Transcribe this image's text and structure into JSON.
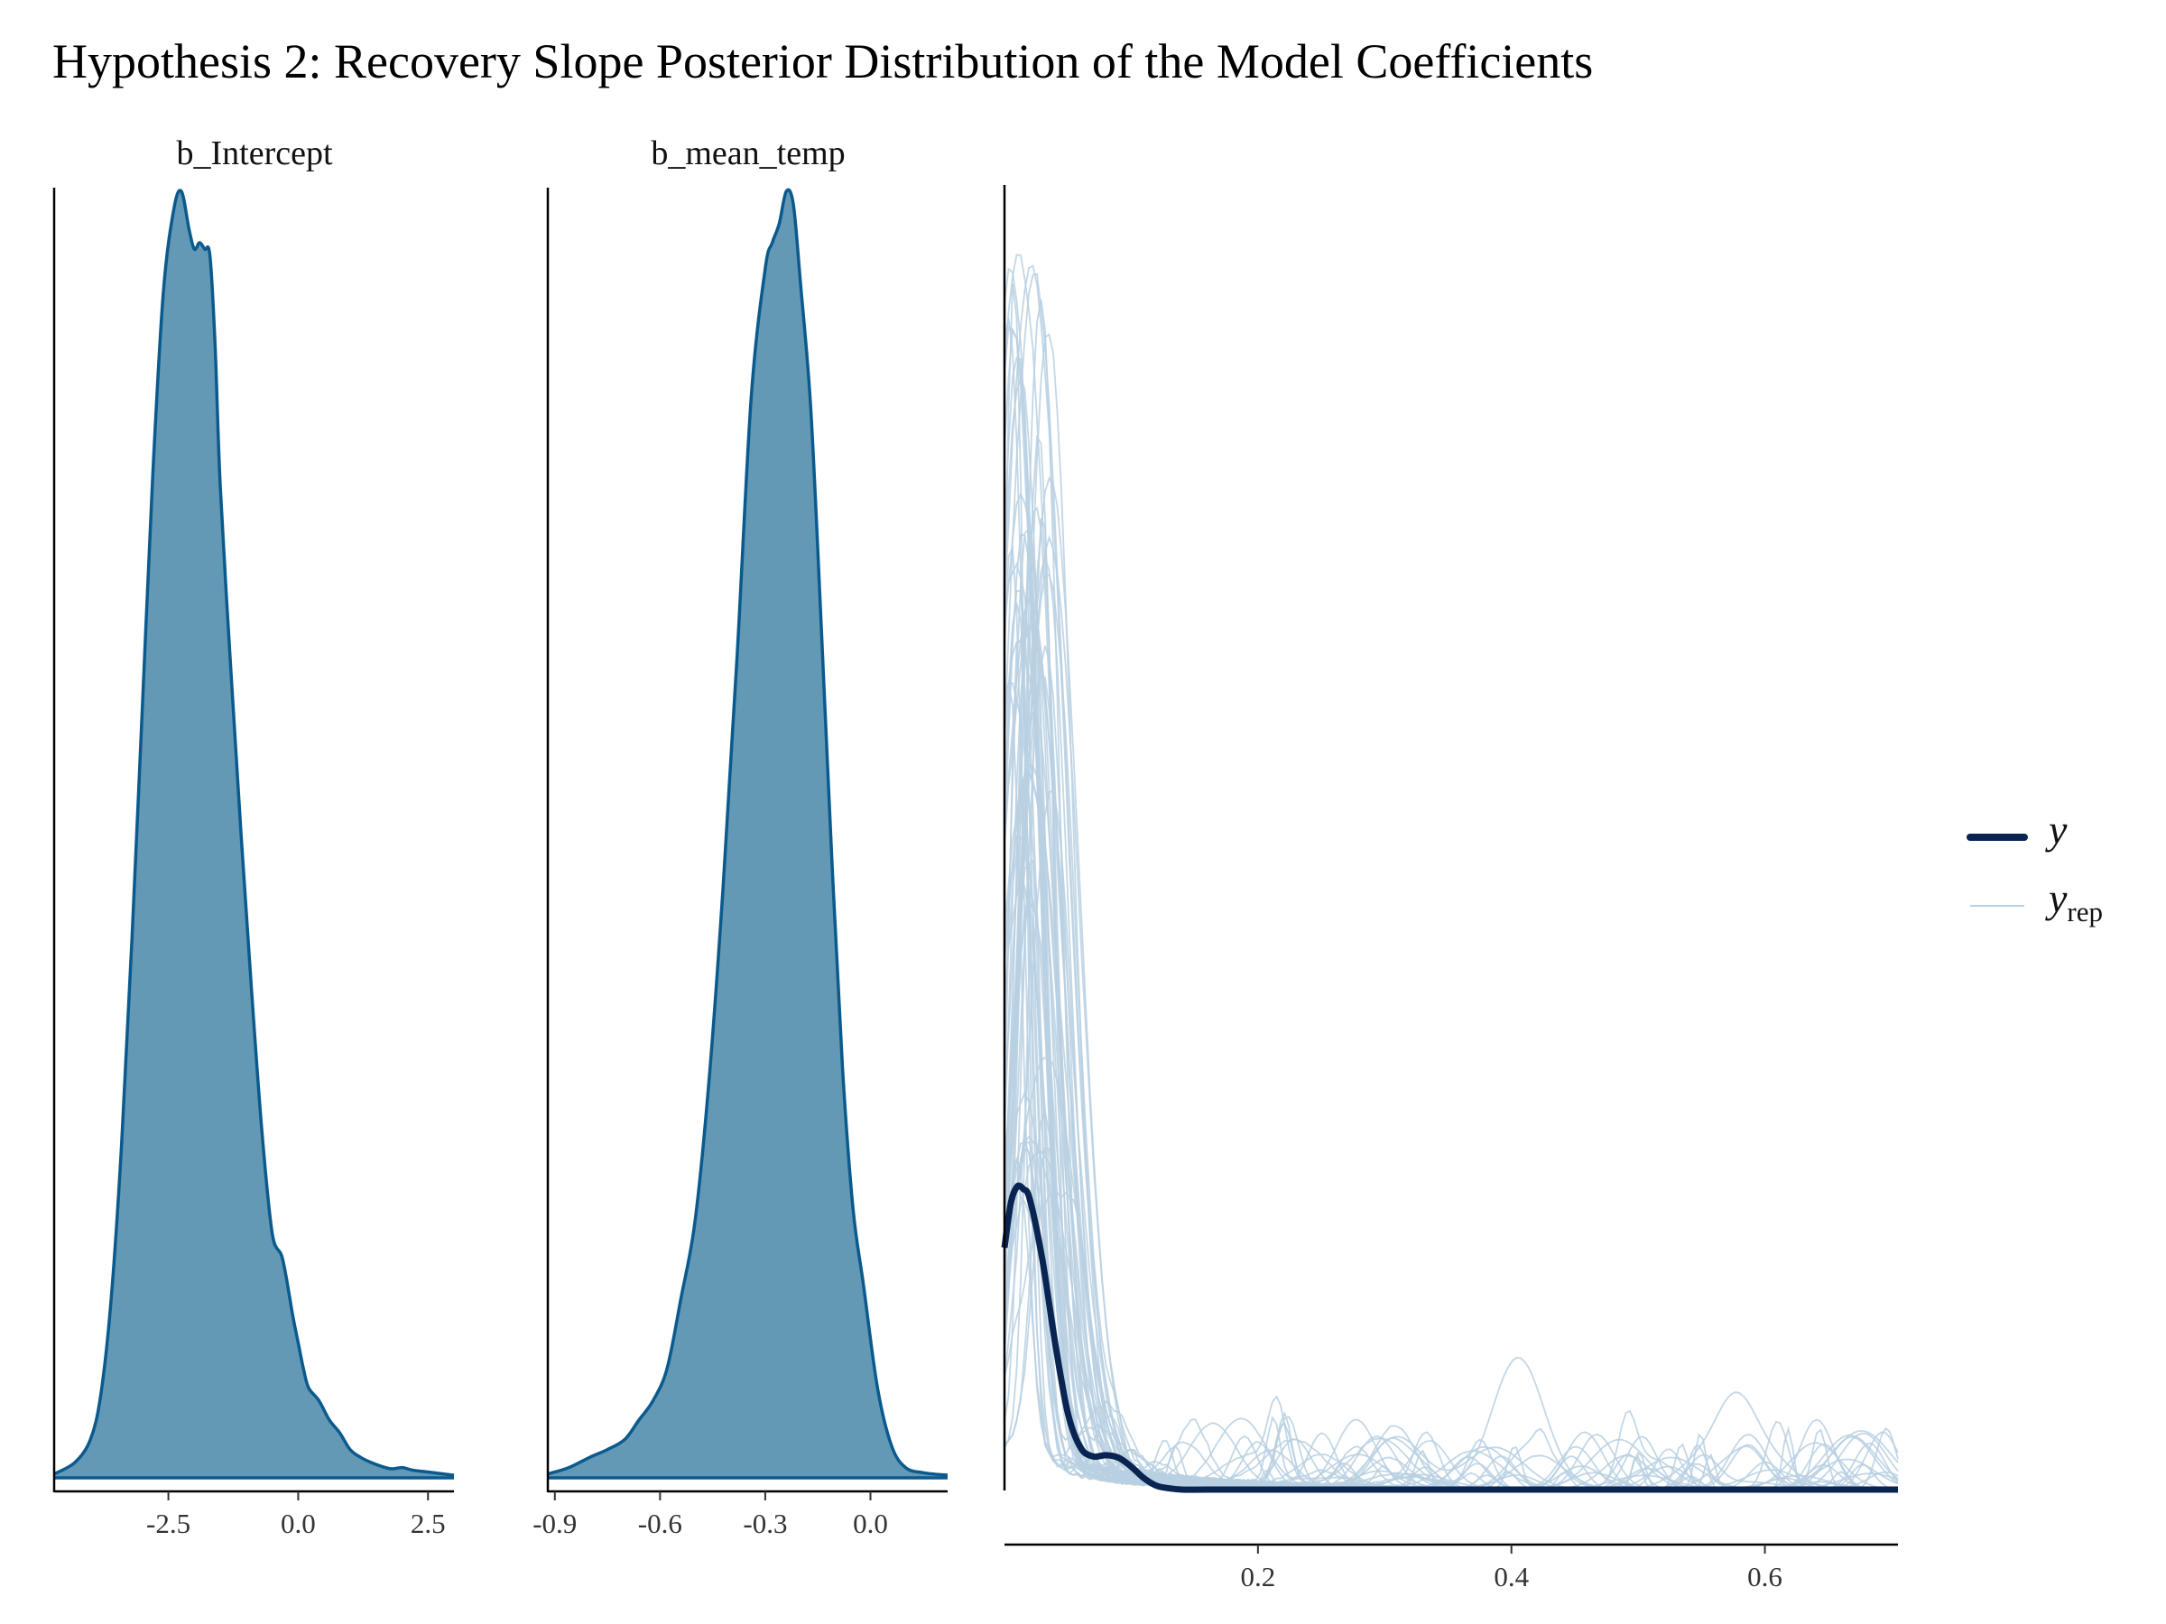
{
  "title": "Hypothesis 2: Recovery Slope Posterior Distribution of the Model Coefficients",
  "colors": {
    "density_fill": "#6399b5",
    "density_line": "#0b5a8e",
    "y_line": "#0a2452",
    "yrep_line": "#b9d0e2",
    "axis": "#000000"
  },
  "chart_data": [
    {
      "type": "area",
      "title": "b_Intercept",
      "xlabel": "",
      "ylabel": "",
      "xlim": [
        -4.7,
        3.0
      ],
      "xticks": [
        -2.5,
        0.0,
        2.5
      ],
      "xtick_labels": [
        "-2.5",
        "0.0",
        "2.5"
      ],
      "y_axis_ticks": "none",
      "series": [
        {
          "x": [
            -4.7,
            -4.3,
            -4.0,
            -3.8,
            -3.6,
            -3.4,
            -3.2,
            -3.0,
            -2.8,
            -2.6,
            -2.4,
            -2.25,
            -2.1,
            -2.0,
            -1.9,
            -1.8,
            -1.7,
            -1.6,
            -1.5,
            -1.3,
            -1.1,
            -0.9,
            -0.7,
            -0.5,
            -0.3,
            -0.1,
            0.0,
            0.1,
            0.2,
            0.4,
            0.6,
            0.8,
            1.0,
            1.2,
            1.4,
            1.6,
            1.8,
            2.0,
            2.2,
            2.4,
            2.6,
            3.0
          ],
          "y": [
            0.003,
            0.012,
            0.03,
            0.065,
            0.14,
            0.26,
            0.42,
            0.6,
            0.78,
            0.92,
            0.985,
            1.0,
            0.97,
            0.955,
            0.96,
            0.955,
            0.95,
            0.88,
            0.77,
            0.63,
            0.5,
            0.38,
            0.27,
            0.19,
            0.17,
            0.125,
            0.105,
            0.085,
            0.07,
            0.06,
            0.045,
            0.035,
            0.022,
            0.016,
            0.012,
            0.009,
            0.007,
            0.008,
            0.006,
            0.005,
            0.004,
            0.002
          ]
        }
      ]
    },
    {
      "type": "area",
      "title": "b_mean_temp",
      "xlabel": "",
      "ylabel": "",
      "xlim": [
        -0.92,
        0.22
      ],
      "xticks": [
        -0.9,
        -0.6,
        -0.3,
        0.0
      ],
      "xtick_labels": [
        "-0.9",
        "-0.6",
        "-0.3",
        "0.0"
      ],
      "y_axis_ticks": "none",
      "series": [
        {
          "x": [
            -0.92,
            -0.86,
            -0.8,
            -0.75,
            -0.7,
            -0.66,
            -0.62,
            -0.58,
            -0.54,
            -0.5,
            -0.46,
            -0.42,
            -0.38,
            -0.34,
            -0.3,
            -0.28,
            -0.26,
            -0.24,
            -0.22,
            -0.2,
            -0.17,
            -0.14,
            -0.11,
            -0.08,
            -0.05,
            -0.02,
            0.02,
            0.06,
            0.1,
            0.15,
            0.22
          ],
          "y": [
            0.003,
            0.008,
            0.016,
            0.022,
            0.03,
            0.045,
            0.06,
            0.085,
            0.14,
            0.2,
            0.31,
            0.46,
            0.64,
            0.84,
            0.94,
            0.96,
            0.975,
            1.0,
            0.99,
            0.93,
            0.83,
            0.66,
            0.48,
            0.32,
            0.21,
            0.15,
            0.07,
            0.025,
            0.008,
            0.004,
            0.002
          ]
        }
      ]
    },
    {
      "type": "line",
      "title": "",
      "xlabel": "",
      "ylabel": "",
      "xlim": [
        0.0,
        0.705
      ],
      "xticks": [
        0.2,
        0.4,
        0.6
      ],
      "xtick_labels": [
        "0.2",
        "0.4",
        "0.6"
      ],
      "y_axis_ticks": "none",
      "legend": {
        "position": "right",
        "entries": [
          {
            "label": "y",
            "subscript": ""
          },
          {
            "label": "y",
            "subscript": "rep"
          }
        ]
      },
      "series": [
        {
          "name": "y",
          "x": [
            0.0,
            0.005,
            0.01,
            0.015,
            0.02,
            0.03,
            0.04,
            0.05,
            0.06,
            0.07,
            0.08,
            0.09,
            0.1,
            0.11,
            0.12,
            0.13,
            0.14,
            0.16,
            0.2,
            0.3,
            0.4,
            0.5,
            0.6,
            0.705
          ],
          "y": [
            0.19,
            0.225,
            0.238,
            0.236,
            0.228,
            0.18,
            0.115,
            0.06,
            0.033,
            0.026,
            0.027,
            0.025,
            0.018,
            0.009,
            0.003,
            0.001,
            0.0,
            0.0,
            0.0,
            0.0,
            0.0,
            0.0,
            0.0,
            0.0
          ]
        },
        {
          "name": "y_rep",
          "draws": 60,
          "x_range": [
            0.0,
            0.705
          ],
          "y_max": 0.95
        }
      ]
    }
  ]
}
